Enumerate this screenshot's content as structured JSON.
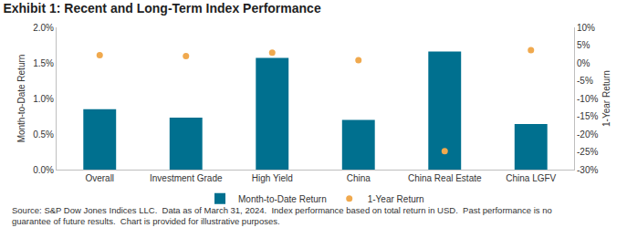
{
  "chart_data": {
    "type": "bar",
    "title": "Exhibit 1: Recent and Long-Term Index Performance",
    "categories": [
      "Overall",
      "Investment Grade",
      "High Yield",
      "China",
      "China Real Estate",
      "China LGFV"
    ],
    "series": [
      {
        "name": "Month-to-Date Return",
        "type": "bar",
        "color": "#00708f",
        "values": [
          0.85,
          0.73,
          1.57,
          0.7,
          1.66,
          0.64
        ]
      },
      {
        "name": "1-Year Return",
        "type": "scatter",
        "marker": "circle",
        "axis": "y2",
        "color": "#f0a94e",
        "values": [
          2.2,
          1.9,
          2.9,
          0.8,
          -24.8,
          3.6
        ]
      }
    ],
    "y_label": "Month-to-Date Return",
    "y2_label": "1-Year Return",
    "ylim": [
      0,
      2
    ],
    "yticks": [
      {
        "value": 0,
        "label": "0.0%"
      },
      {
        "value": 0.5,
        "label": "0.5%"
      },
      {
        "value": 1,
        "label": "1.0%"
      },
      {
        "value": 1.5,
        "label": "1.5%"
      },
      {
        "value": 2,
        "label": "2.0%"
      }
    ],
    "y2lim": [
      -30,
      10
    ],
    "y2ticks": [
      {
        "value": -30,
        "label": "-30%"
      },
      {
        "value": -25,
        "label": "-25%"
      },
      {
        "value": -20,
        "label": "-20%"
      },
      {
        "value": -15,
        "label": "-15%"
      },
      {
        "value": -10,
        "label": "-10%"
      },
      {
        "value": -5,
        "label": "-5%"
      },
      {
        "value": 0,
        "label": "0%"
      },
      {
        "value": 5,
        "label": "5%"
      },
      {
        "value": 10,
        "label": "10%"
      }
    ],
    "grid": false,
    "legend": "bottom",
    "source": [
      "Source: S&P Dow Jones Indices LLC.  Data as of March 31, 2024.  Index performance based on total return in USD.  Past performance is no",
      "guarantee of future results.  Chart is provided for illustrative purposes."
    ]
  }
}
